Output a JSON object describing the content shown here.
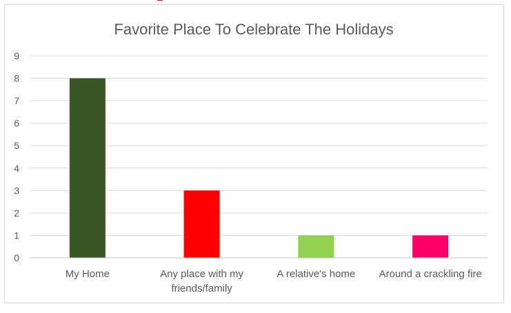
{
  "chart_data": {
    "type": "bar",
    "title": "Favorite Place To Celebrate The Holidays",
    "categories": [
      "My Home",
      "Any place with my friends/family",
      "A relative's home",
      "Around a crackling fire"
    ],
    "category_lines": [
      [
        "My Home"
      ],
      [
        "Any place with my",
        "friends/family"
      ],
      [
        "A relative's home"
      ],
      [
        "Around a crackling fire"
      ]
    ],
    "values": [
      8,
      3,
      1,
      1
    ],
    "bar_colors": [
      "#375623",
      "#ff0000",
      "#92d050",
      "#ff0066"
    ],
    "ylim": [
      0,
      9
    ],
    "yticks": [
      0,
      1,
      2,
      3,
      4,
      5,
      6,
      7,
      8,
      9
    ],
    "xlabel": "",
    "ylabel": "",
    "grid": true,
    "legend": "none"
  }
}
